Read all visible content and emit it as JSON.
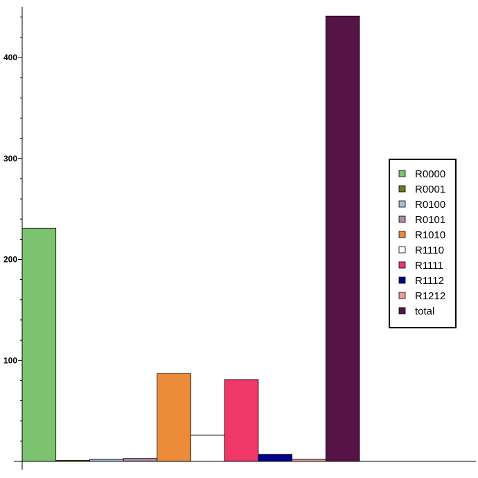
{
  "chart_data": {
    "type": "bar",
    "title": "",
    "xlabel": "",
    "ylabel": "",
    "ylim": [
      0,
      450
    ],
    "yticks": [
      100,
      200,
      300,
      400
    ],
    "grid": false,
    "legend_position": "right",
    "series": [
      {
        "name": "R0000",
        "value": 231,
        "color": "#7dc26e"
      },
      {
        "name": "R0001",
        "value": 1,
        "color": "#6b7a1f"
      },
      {
        "name": "R0100",
        "value": 2,
        "color": "#a9bfd6"
      },
      {
        "name": "R0101",
        "value": 3,
        "color": "#b08aaa"
      },
      {
        "name": "R1010",
        "value": 87,
        "color": "#ec8c3a"
      },
      {
        "name": "R1110",
        "value": 26,
        "color": "#ffffff"
      },
      {
        "name": "R1111",
        "value": 81,
        "color": "#ef3768"
      },
      {
        "name": "R1112",
        "value": 7,
        "color": "#000088"
      },
      {
        "name": "R1212",
        "value": 2,
        "color": "#f49a9a"
      },
      {
        "name": "total",
        "value": 441,
        "color": "#561345"
      }
    ]
  }
}
